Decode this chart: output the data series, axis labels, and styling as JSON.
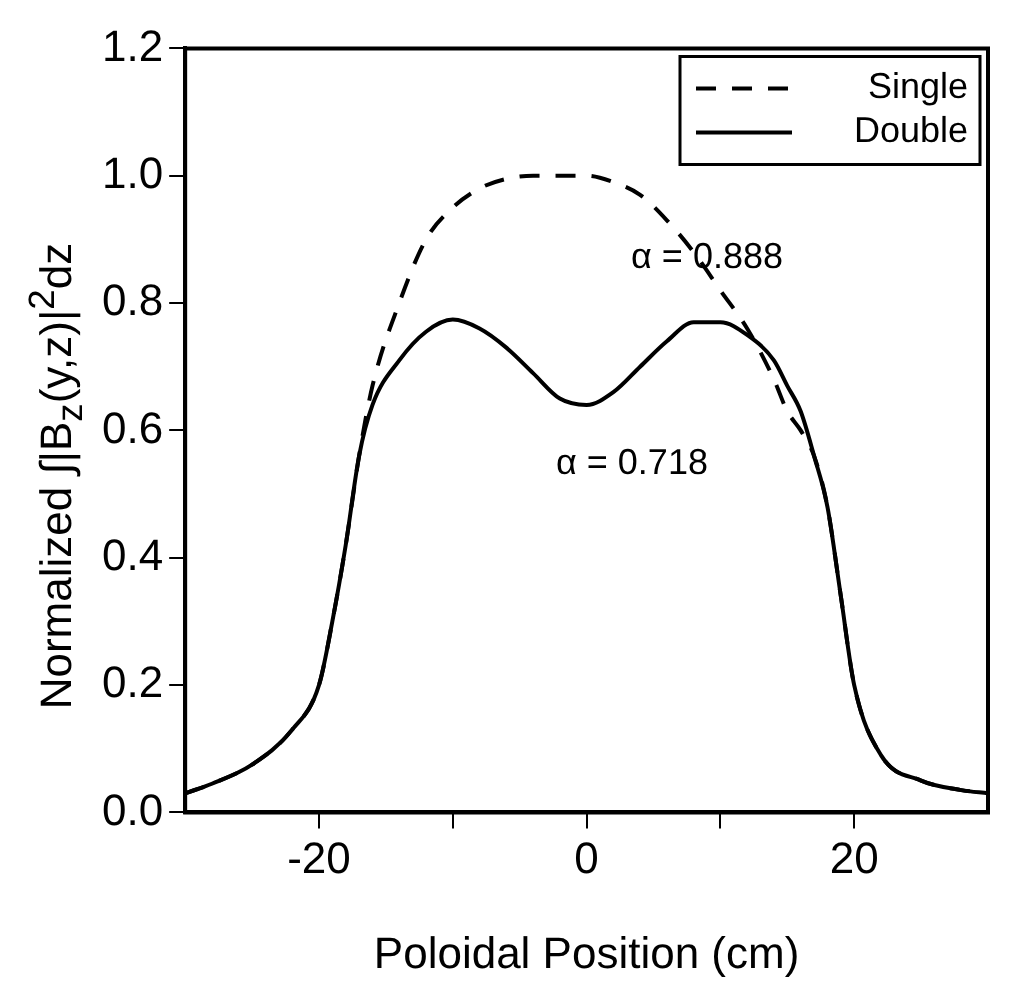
{
  "chart_data": {
    "type": "line",
    "xlabel": "Poloidal Position (cm)",
    "ylabel": "Normalized ∫|B$_{z}$(y,z)|$^{2}$dz",
    "xlim": [
      -30,
      30
    ],
    "xticks": [
      -20,
      {
        "value": -10,
        "label": null
      },
      0,
      {
        "value": 10,
        "label": null
      },
      20
    ],
    "ylim": [
      0,
      1.2
    ],
    "yticks": [
      {
        "value": 0,
        "label": "0.0"
      },
      0.2,
      0.4,
      0.6,
      0.8,
      {
        "value": 1,
        "label": "1.0"
      },
      1.2
    ],
    "grid": false,
    "legend": "top right",
    "marker": "none",
    "annotations": [
      {
        "text": "α = 0.888",
        "x": 9,
        "y": 0.87
      },
      "α = 0.718"
    ],
    "series": [
      {
        "name": "Single",
        "color": "#000000",
        "line_style": "dashed",
        "x": [
          -30,
          -28,
          -25,
          -22,
          -20,
          -19,
          -18,
          -17,
          -16,
          -14,
          -12,
          -10,
          -8,
          -6,
          -4,
          -2,
          -1,
          0,
          2,
          4,
          6,
          8,
          10,
          12,
          14,
          15,
          16,
          17,
          18,
          19,
          20,
          22,
          25,
          28,
          30
        ],
        "values": [
          0.03,
          0.045,
          0.075,
          0.13,
          0.2,
          0.3,
          0.42,
          0.56,
          0.67,
          0.8,
          0.9,
          0.95,
          0.98,
          0.995,
          1.0,
          1.0,
          1.0,
          1.0,
          0.99,
          0.97,
          0.93,
          0.88,
          0.82,
          0.76,
          0.68,
          0.63,
          0.6,
          0.56,
          0.48,
          0.34,
          0.2,
          0.09,
          0.05,
          0.035,
          0.03
        ]
      },
      {
        "name": "Double",
        "color": "#000000",
        "line_style": "solid",
        "x": [
          -30,
          -28,
          -25,
          -22,
          -20,
          -19,
          -18,
          -17,
          -16,
          -14,
          -12,
          -10,
          -8,
          -6,
          -4,
          -2,
          0,
          2,
          4,
          6,
          8,
          10,
          12,
          14,
          15,
          16,
          17,
          18,
          19,
          20,
          22,
          25,
          28,
          30
        ],
        "values": [
          0.03,
          0.045,
          0.075,
          0.13,
          0.2,
          0.3,
          0.42,
          0.56,
          0.64,
          0.71,
          0.755,
          0.774,
          0.76,
          0.73,
          0.69,
          0.65,
          0.64,
          0.66,
          0.7,
          0.74,
          0.77,
          0.77,
          0.75,
          0.71,
          0.67,
          0.63,
          0.56,
          0.48,
          0.34,
          0.2,
          0.09,
          0.05,
          0.035,
          0.03
        ]
      }
    ]
  }
}
